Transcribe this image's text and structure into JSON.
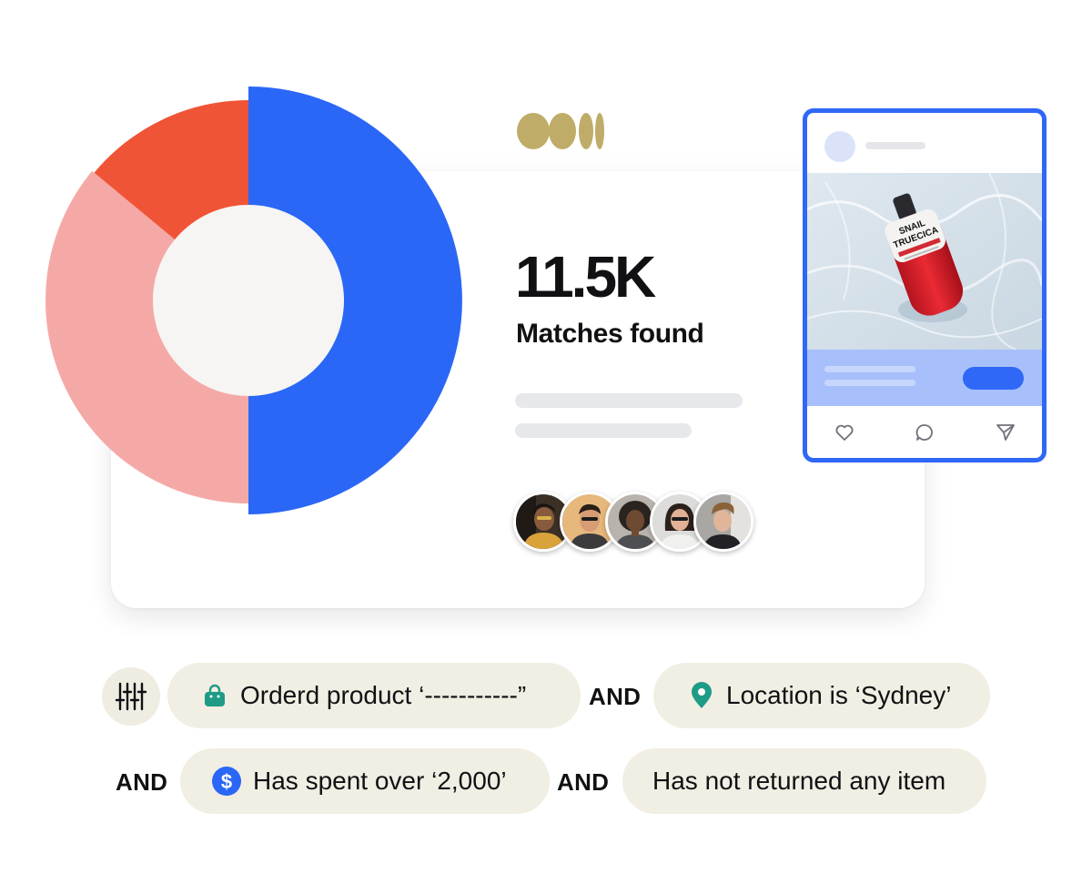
{
  "summary": {
    "matches_value": "11.5K",
    "matches_label": "Matches found",
    "avatar_count": 5
  },
  "segment_chart": {
    "type": "donut",
    "slices": [
      {
        "fraction": 0.5,
        "color": "#2b67f6"
      },
      {
        "fraction": 0.36,
        "color": "#f5a9a7"
      },
      {
        "fraction": 0.14,
        "color": "#f05436"
      }
    ],
    "hole_color": "#f6f5f3"
  },
  "colors": {
    "accent_blue": "#2f67f6",
    "brand_gold": "#bfac68",
    "chip_background": "#f1eee3",
    "bag_icon": "#1e9b85",
    "pin_icon": "#1e9b85",
    "dollar_icon": "#2b67f6"
  },
  "post_card": {
    "actions": [
      "heart-icon",
      "comment-icon",
      "share-icon"
    ],
    "product_label": {
      "brand": "SNAIL",
      "name": "TRUECICA"
    }
  },
  "filters": {
    "rows": [
      [
        {
          "icon": "shopping-bag-icon",
          "label": "Orderd product ‘-----------”"
        },
        {
          "operator": "AND"
        },
        {
          "icon": "location-pin-icon",
          "label": "Location is ‘Sydney’"
        }
      ],
      [
        {
          "operator": "AND"
        },
        {
          "icon": "dollar-icon",
          "label": "Has spent over ‘2,000’"
        },
        {
          "operator": "AND"
        },
        {
          "label": "Has not returned any item"
        }
      ]
    ]
  }
}
